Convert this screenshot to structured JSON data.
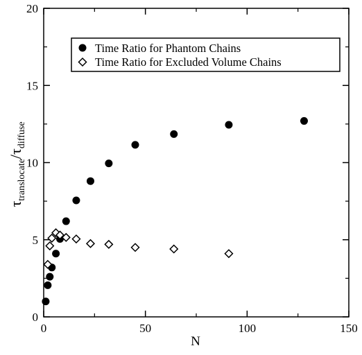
{
  "chart_data": {
    "type": "scatter",
    "xlabel": "N",
    "ylabel": {
      "symbol": "τ",
      "sub1": "translocate",
      "sep": "/",
      "sub2": "diffuse"
    },
    "xlim": [
      0,
      150
    ],
    "ylim": [
      0,
      20
    ],
    "x_ticks": [
      "0",
      "50",
      "100",
      "150"
    ],
    "y_ticks": [
      "0",
      "5",
      "10",
      "15",
      "20"
    ],
    "legend_position": "top-right",
    "grid": false,
    "series": [
      {
        "name": "Time Ratio for Phantom Chains",
        "marker": "filled-circle",
        "color": "#000000",
        "points": [
          [
            1,
            1.0
          ],
          [
            2,
            2.05
          ],
          [
            3,
            2.6
          ],
          [
            4,
            3.2
          ],
          [
            6,
            4.1
          ],
          [
            8,
            5.05
          ],
          [
            11,
            6.2
          ],
          [
            16,
            7.55
          ],
          [
            23,
            8.8
          ],
          [
            32,
            9.95
          ],
          [
            45,
            11.15
          ],
          [
            64,
            11.85
          ],
          [
            91,
            12.45
          ],
          [
            128,
            12.7
          ]
        ]
      },
      {
        "name": "Time Ratio for Excluded Volume Chains",
        "marker": "open-diamond",
        "color": "#000000",
        "points": [
          [
            2,
            3.4
          ],
          [
            3,
            4.6
          ],
          [
            4,
            5.1
          ],
          [
            6,
            5.45
          ],
          [
            8,
            5.3
          ],
          [
            11,
            5.15
          ],
          [
            16,
            5.05
          ],
          [
            23,
            4.75
          ],
          [
            32,
            4.7
          ],
          [
            45,
            4.5
          ],
          [
            64,
            4.4
          ],
          [
            91,
            4.1
          ]
        ]
      }
    ]
  }
}
